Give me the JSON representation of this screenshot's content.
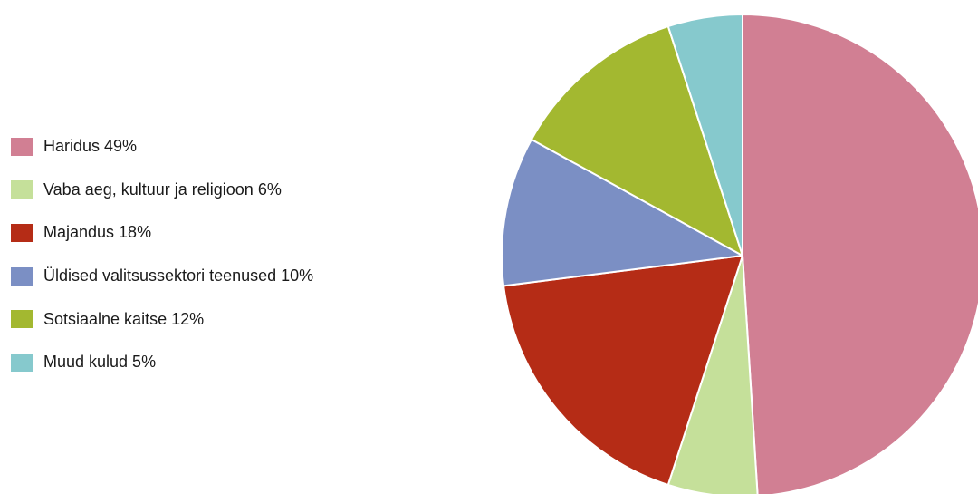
{
  "chart_data": {
    "type": "pie",
    "start_angle_deg": 0,
    "direction": "clockwise",
    "slices": [
      {
        "label": "Haridus 49%",
        "value": 49,
        "color": "#d17f93"
      },
      {
        "label": "Vaba aeg, kultuur ja religioon 6%",
        "value": 6,
        "color": "#c5e09a"
      },
      {
        "label": "Majandus 18%",
        "value": 18,
        "color": "#b52c16"
      },
      {
        "label": "Üldised valitsussektori teenused 10%",
        "value": 10,
        "color": "#7b8fc4"
      },
      {
        "label": "Sotsiaalne kaitse 12%",
        "value": 12,
        "color": "#a3b830"
      },
      {
        "label": "Muud kulud 5%",
        "value": 5,
        "color": "#86c9cd"
      }
    ],
    "legend_position": "left"
  }
}
